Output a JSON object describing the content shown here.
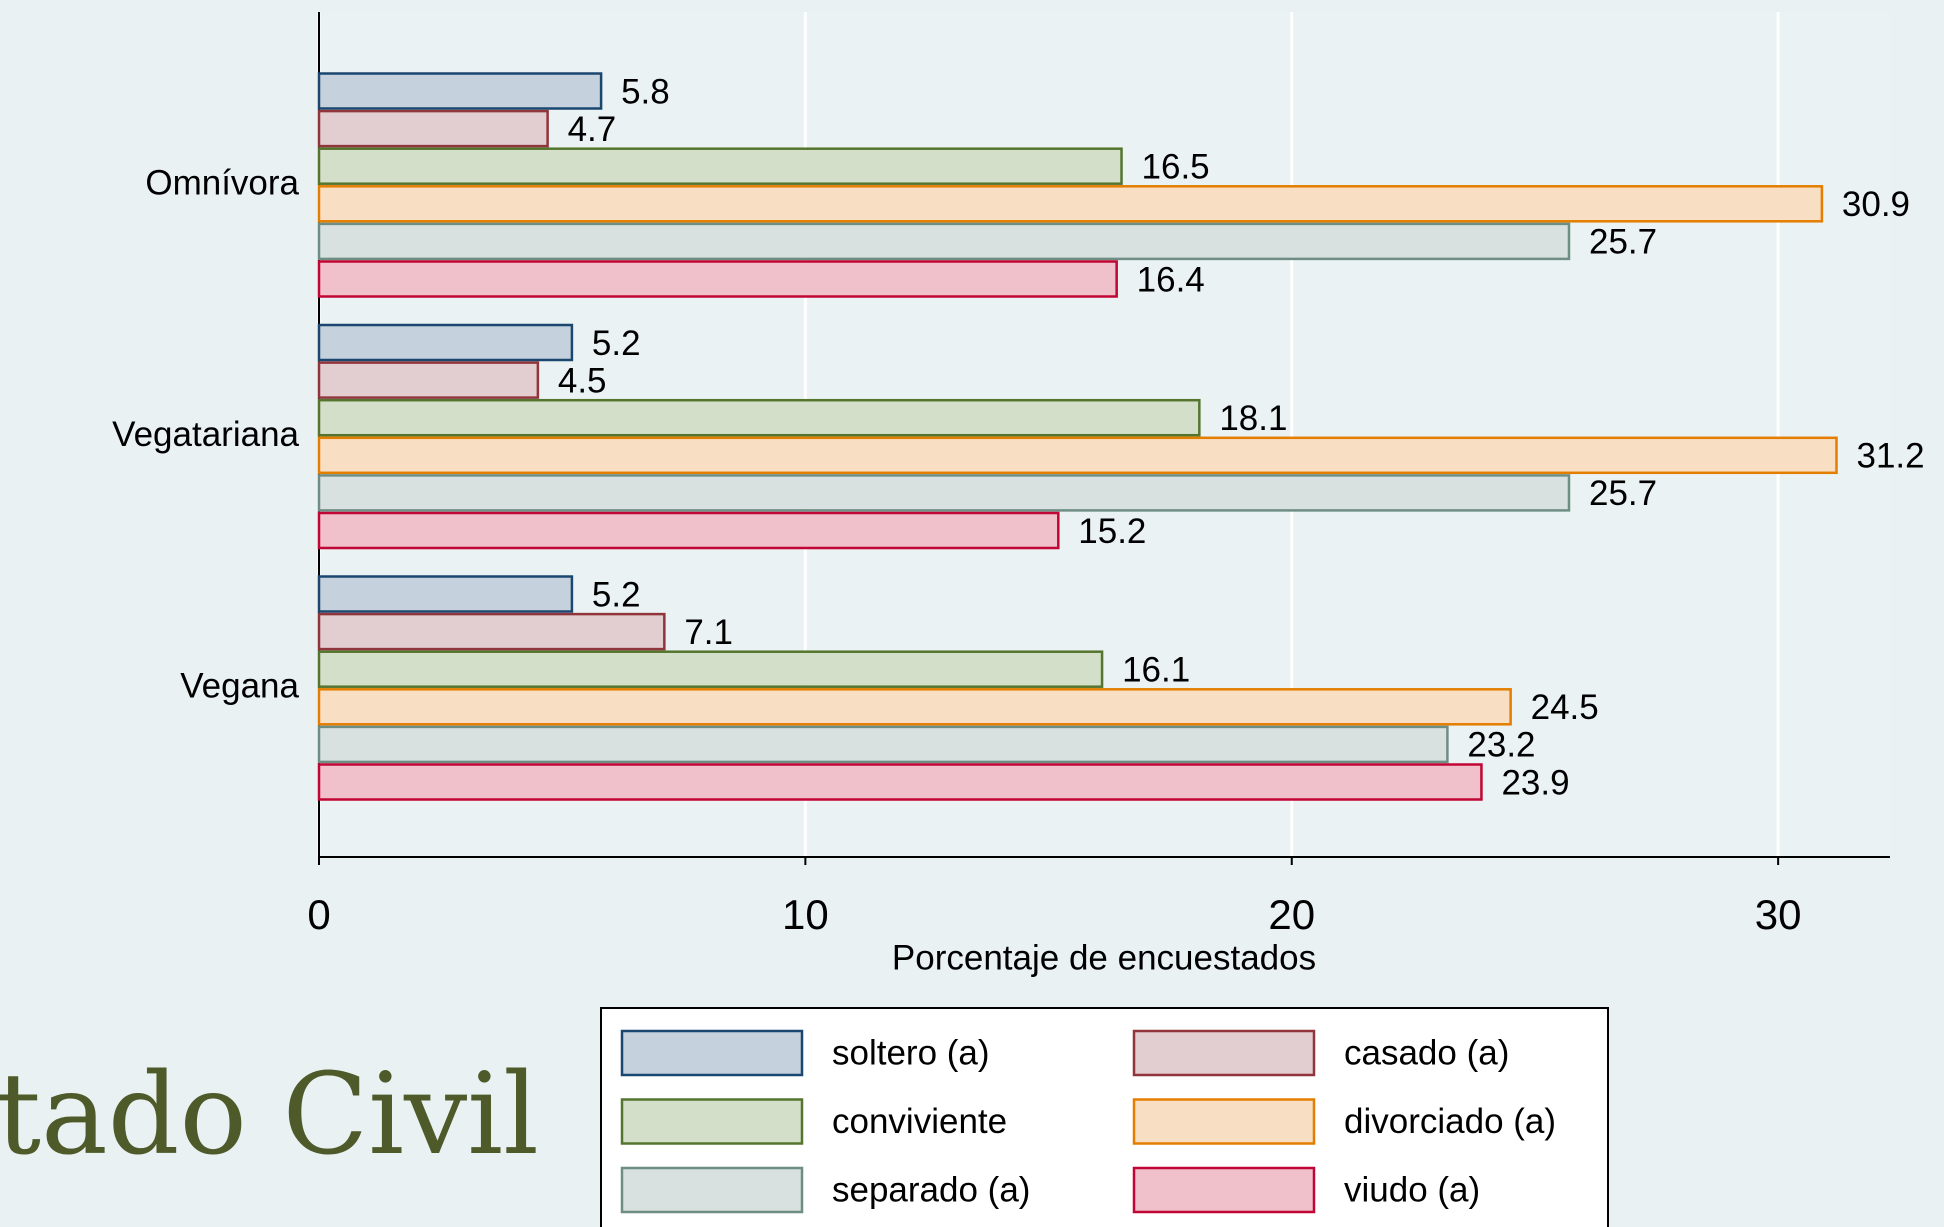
{
  "chart_data": {
    "type": "barh",
    "background_title": "tado Civil",
    "xlabel": "Porcentaje de encuestados",
    "categories": [
      "Omnívora",
      "Vegatariana",
      "Vegana"
    ],
    "series": [
      {
        "name": "soltero (a)",
        "fill": "#c5d1dc",
        "color": "#1a476f",
        "values": [
          5.8,
          5.2,
          5.2
        ]
      },
      {
        "name": "casado (a)",
        "fill": "#e2cdd0",
        "color": "#90353b",
        "values": [
          4.7,
          4.5,
          7.1
        ]
      },
      {
        "name": "conviviente",
        "fill": "#d4dfc9",
        "color": "#55752f",
        "values": [
          16.5,
          18.1,
          16.1
        ]
      },
      {
        "name": "divorciado (a)",
        "fill": "#f8dec2",
        "color": "#e37e00",
        "values": [
          30.9,
          31.2,
          24.5
        ]
      },
      {
        "name": "separado (a)",
        "fill": "#d8e1df",
        "color": "#6e8e84",
        "values": [
          25.7,
          25.7,
          23.2
        ]
      },
      {
        "name": "viudo (a)",
        "fill": "#f0c0cb",
        "color": "#c10534",
        "values": [
          16.4,
          15.2,
          23.9
        ]
      }
    ],
    "xlim": [
      0,
      32.3
    ],
    "xticks": [
      0,
      10,
      20,
      30
    ],
    "grid": true
  }
}
